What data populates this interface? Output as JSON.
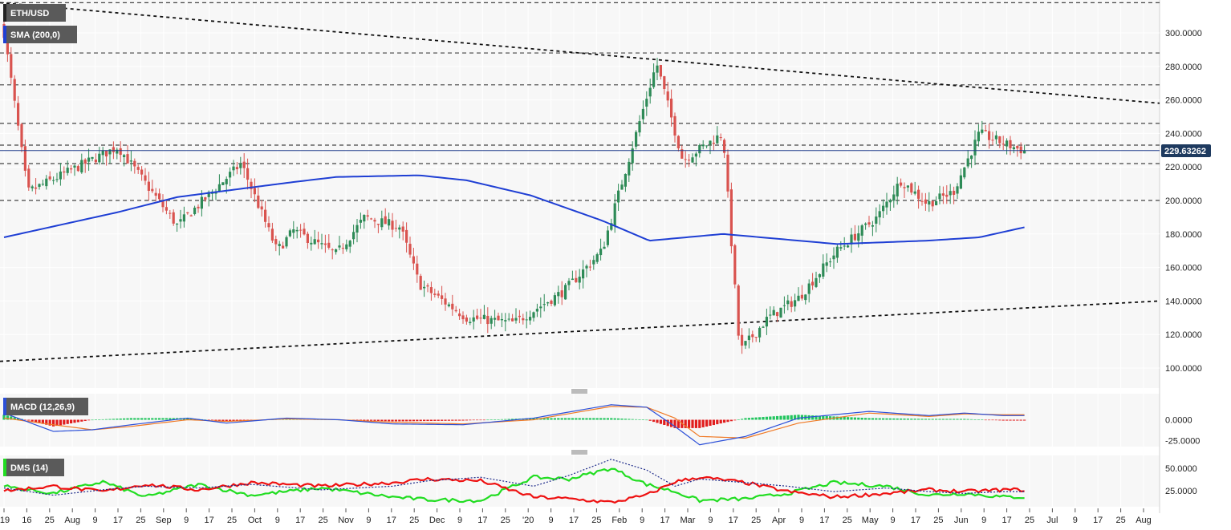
{
  "legend": {
    "symbol": "ETH/USD",
    "sma": "SMA (200,0)",
    "macd": "MACD (12,26,9)",
    "dms": "DMS (14)"
  },
  "last_price": "229.63262",
  "colors": {
    "up": "#2e8b57",
    "down": "#d9534f",
    "sma": "#1f3fd4",
    "macd_line": "#2b4fd8",
    "signal_line": "#f07a26",
    "hist_pos": "#22c55e",
    "hist_neg": "#e11d1d",
    "dms_plus": "#22dd22",
    "dms_minus": "#ee1111",
    "adx": "#1e2b8a",
    "price_tag": "#1e3a5f"
  },
  "axes": {
    "price_ticks": [
      "300.0000",
      "280.0000",
      "260.0000",
      "240.0000",
      "220.0000",
      "200.0000",
      "180.0000",
      "160.0000",
      "140.0000",
      "120.0000",
      "100.0000"
    ],
    "macd_ticks": [
      "0.0000",
      "-25.0000"
    ],
    "dms_ticks": [
      "50.0000",
      "25.0000"
    ],
    "x_ticks": [
      "'19",
      "16",
      "25",
      "Aug",
      "9",
      "17",
      "25",
      "Sep",
      "9",
      "17",
      "25",
      "Oct",
      "9",
      "17",
      "25",
      "Nov",
      "9",
      "17",
      "25",
      "Dec",
      "9",
      "17",
      "25",
      "'20",
      "9",
      "17",
      "25",
      "Feb",
      "9",
      "17",
      "Mar",
      "9",
      "17",
      "25",
      "Apr",
      "9",
      "17",
      "25",
      "May",
      "9",
      "17",
      "25",
      "Jun",
      "9",
      "17",
      "25",
      "Jul",
      "9",
      "17",
      "25",
      "Aug"
    ]
  },
  "chart_data": [
    {
      "type": "candlestick",
      "title": "ETH/USD",
      "ylim": [
        88,
        318
      ],
      "price_levels": [
        318,
        288,
        269,
        246,
        233,
        222,
        200
      ],
      "last_price": 229.63,
      "trendlines": [
        {
          "from": [
            "'19",
            318
          ],
          "to": [
            "Aug",
            258
          ]
        },
        {
          "from": [
            "'19",
            104
          ],
          "to": [
            "Aug",
            140
          ]
        }
      ],
      "anchors": [
        {
          "x": "early Jul '19",
          "close": 300
        },
        {
          "x": "mid Jul '19",
          "close": 205
        },
        {
          "x": "Aug 9 '19",
          "close": 232
        },
        {
          "x": "late Aug '19",
          "close": 185
        },
        {
          "x": "mid Sep '19",
          "close": 222
        },
        {
          "x": "late Sep '19",
          "close": 170
        },
        {
          "x": "early Oct '19",
          "close": 182
        },
        {
          "x": "late Oct '19",
          "close": 168
        },
        {
          "x": "early Nov '19",
          "close": 190
        },
        {
          "x": "mid Nov '19",
          "close": 184
        },
        {
          "x": "late Nov '19",
          "close": 150
        },
        {
          "x": "mid Dec '19",
          "close": 130
        },
        {
          "x": "late Dec '19",
          "close": 127
        },
        {
          "x": "mid Jan '20",
          "close": 146
        },
        {
          "x": "late Jan '20",
          "close": 170
        },
        {
          "x": "Feb 14 '20",
          "close": 282
        },
        {
          "x": "late Feb '20",
          "close": 224
        },
        {
          "x": "early Mar '20",
          "close": 240
        },
        {
          "x": "Mar 12 '20",
          "close": 110
        },
        {
          "x": "late Mar '20",
          "close": 130
        },
        {
          "x": "early Apr '20",
          "close": 142
        },
        {
          "x": "mid Apr '20",
          "close": 170
        },
        {
          "x": "late Apr '20",
          "close": 190
        },
        {
          "x": "early May '20",
          "close": 212
        },
        {
          "x": "mid May '20",
          "close": 198
        },
        {
          "x": "late May '20",
          "close": 205
        },
        {
          "x": "early Jun '20",
          "close": 240
        },
        {
          "x": "mid Jun '20",
          "close": 232
        },
        {
          "x": "Jun 18 '20",
          "close": 229.6
        }
      ],
      "sma_200": [
        {
          "x": "early Jul '19",
          "v": 178
        },
        {
          "x": "Aug 9 '19",
          "v": 193
        },
        {
          "x": "late Aug '19",
          "v": 202
        },
        {
          "x": "mid Sep '19",
          "v": 207
        },
        {
          "x": "early Oct '19",
          "v": 211
        },
        {
          "x": "late Oct '19",
          "v": 214
        },
        {
          "x": "late Nov '19",
          "v": 215
        },
        {
          "x": "mid Dec '19",
          "v": 212
        },
        {
          "x": "early Jan '20",
          "v": 203
        },
        {
          "x": "late Jan '20",
          "v": 188
        },
        {
          "x": "mid Feb '20",
          "v": 176
        },
        {
          "x": "early Mar '20",
          "v": 180
        },
        {
          "x": "mid Apr '20",
          "v": 174
        },
        {
          "x": "mid May '20",
          "v": 176
        },
        {
          "x": "early Jun '20",
          "v": 178
        },
        {
          "x": "Jun 18 '20",
          "v": 184
        }
      ]
    },
    {
      "type": "line",
      "title": "MACD (12,26,9)",
      "ylim": [
        -35,
        38
      ],
      "series": [
        {
          "name": "MACD",
          "anchors": [
            [
              0,
              8
            ],
            [
              14,
              -14
            ],
            [
              25,
              -12
            ],
            [
              36,
              -6
            ],
            [
              52,
              2
            ],
            [
              63,
              -4
            ],
            [
              80,
              2
            ],
            [
              95,
              0
            ],
            [
              110,
              -5
            ],
            [
              130,
              -6
            ],
            [
              150,
              2
            ],
            [
              172,
              18
            ],
            [
              182,
              15
            ],
            [
              190,
              -8
            ],
            [
              197,
              -30
            ],
            [
              210,
              -20
            ],
            [
              225,
              2
            ],
            [
              245,
              10
            ],
            [
              262,
              5
            ],
            [
              272,
              8
            ],
            [
              283,
              5
            ]
          ]
        },
        {
          "name": "Signal",
          "anchors": [
            [
              0,
              2
            ],
            [
              14,
              -6
            ],
            [
              25,
              -12
            ],
            [
              36,
              -8
            ],
            [
              52,
              0
            ],
            [
              63,
              -2
            ],
            [
              80,
              1
            ],
            [
              95,
              0
            ],
            [
              110,
              -3
            ],
            [
              130,
              -5
            ],
            [
              150,
              0
            ],
            [
              172,
              16
            ],
            [
              182,
              15
            ],
            [
              190,
              2
            ],
            [
              197,
              -20
            ],
            [
              210,
              -22
            ],
            [
              225,
              -4
            ],
            [
              245,
              8
            ],
            [
              262,
              4
            ],
            [
              272,
              7
            ],
            [
              283,
              6
            ]
          ]
        }
      ]
    },
    {
      "type": "line",
      "title": "DMS (14)",
      "ylim": [
        10,
        64
      ],
      "series": [
        {
          "name": "+DI",
          "anchors": [
            [
              0,
              30
            ],
            [
              14,
              22
            ],
            [
              28,
              35
            ],
            [
              40,
              18
            ],
            [
              55,
              32
            ],
            [
              70,
              20
            ],
            [
              90,
              28
            ],
            [
              110,
              18
            ],
            [
              120,
              15
            ],
            [
              135,
              14
            ],
            [
              150,
              40
            ],
            [
              160,
              38
            ],
            [
              172,
              50
            ],
            [
              182,
              32
            ],
            [
              190,
              24
            ],
            [
              197,
              14
            ],
            [
              210,
              16
            ],
            [
              222,
              22
            ],
            [
              235,
              34
            ],
            [
              250,
              30
            ],
            [
              262,
              20
            ],
            [
              272,
              22
            ],
            [
              283,
              18
            ]
          ]
        },
        {
          "name": "-DI",
          "anchors": [
            [
              0,
              25
            ],
            [
              14,
              30
            ],
            [
              28,
              24
            ],
            [
              40,
              32
            ],
            [
              55,
              26
            ],
            [
              70,
              34
            ],
            [
              90,
              30
            ],
            [
              110,
              34
            ],
            [
              120,
              38
            ],
            [
              135,
              36
            ],
            [
              150,
              18
            ],
            [
              160,
              16
            ],
            [
              172,
              12
            ],
            [
              182,
              20
            ],
            [
              190,
              35
            ],
            [
              197,
              40
            ],
            [
              210,
              34
            ],
            [
              222,
              24
            ],
            [
              235,
              18
            ],
            [
              250,
              22
            ],
            [
              262,
              26
            ],
            [
              272,
              24
            ],
            [
              283,
              26
            ]
          ]
        },
        {
          "name": "ADX",
          "anchors": [
            [
              0,
              28
            ],
            [
              14,
              20
            ],
            [
              28,
              26
            ],
            [
              40,
              30
            ],
            [
              55,
              28
            ],
            [
              70,
              32
            ],
            [
              90,
              26
            ],
            [
              110,
              30
            ],
            [
              120,
              36
            ],
            [
              135,
              40
            ],
            [
              150,
              30
            ],
            [
              160,
              42
            ],
            [
              172,
              60
            ],
            [
              182,
              48
            ],
            [
              190,
              30
            ],
            [
              197,
              38
            ],
            [
              210,
              34
            ],
            [
              222,
              30
            ],
            [
              235,
              24
            ],
            [
              250,
              28
            ],
            [
              262,
              24
            ],
            [
              272,
              22
            ],
            [
              283,
              24
            ]
          ]
        }
      ]
    }
  ]
}
